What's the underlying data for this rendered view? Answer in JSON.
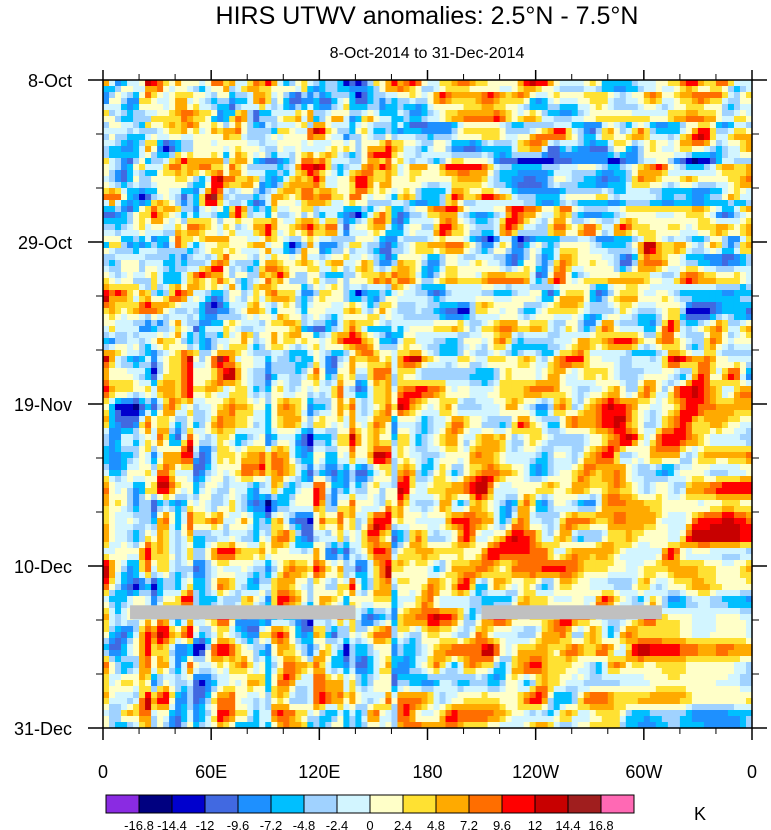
{
  "chart_data": {
    "type": "heatmap",
    "title": "HIRS UTWV anomalies: 2.5°N - 7.5°N",
    "subtitle": "8-Oct-2014 to 31-Dec-2014",
    "xlabel": "",
    "ylabel": "",
    "x_range_deg": [
      0,
      360
    ],
    "x_ticks": [
      "0",
      "60E",
      "120E",
      "180",
      "120W",
      "60W",
      "0"
    ],
    "y_ticks": [
      "8-Oct",
      "29-Oct",
      "19-Nov",
      "10-Dec",
      "31-Dec"
    ],
    "y_axis_direction": "time increases downward",
    "colorbar": {
      "unit": "K",
      "levels": [
        "-16.8",
        "-14.4",
        "-12",
        "-9.6",
        "-7.2",
        "-4.8",
        "-2.4",
        "0",
        "2.4",
        "4.8",
        "7.2",
        "9.6",
        "12",
        "14.4",
        "16.8"
      ],
      "colors": [
        "#8a2be2",
        "#000080",
        "#0000cd",
        "#4169e1",
        "#1e90ff",
        "#00bfff",
        "#a0d2ff",
        "#d2f5ff",
        "#ffffc8",
        "#ffe132",
        "#ffaa00",
        "#ff6e00",
        "#ff0000",
        "#c80000",
        "#a01e1e",
        "#ff69b4"
      ]
    },
    "missing_data_color": "#c0c0c0",
    "missing_data_segments": [
      {
        "lon_start_deg": 15,
        "lon_end_deg": 140,
        "date": "16-Dec"
      },
      {
        "lon_start_deg": 210,
        "lon_end_deg": 310,
        "date": "16-Dec"
      }
    ]
  }
}
